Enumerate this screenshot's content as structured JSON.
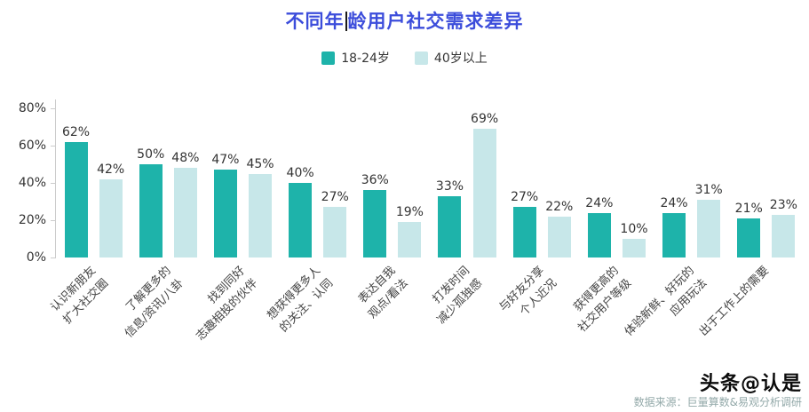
{
  "title": {
    "part1": "不同年",
    "part2": "龄用户社交需求差异"
  },
  "legend": [
    {
      "label": "18-24岁",
      "color": "#1eb3aa"
    },
    {
      "label": "40岁以上",
      "color": "#c7e7e9"
    }
  ],
  "chart_data": {
    "type": "bar",
    "title": "不同年龄用户社交需求差异",
    "categories": [
      "认识新朋友\n扩大社交圈",
      "了解更多的\n信息/资讯/八卦",
      "找到同好\n志趣相投的伙伴",
      "想获得更多人\n的关注、认同",
      "表达自我\n观点/看法",
      "打发时间\n减少孤独感",
      "与好友分享\n个人近况",
      "获得更高的\n社交用户等级",
      "体验新鲜、好玩的\n应用玩法",
      "出于工作上的需要"
    ],
    "series": [
      {
        "name": "18-24岁",
        "color": "#1eb3aa",
        "values": [
          62,
          50,
          47,
          40,
          36,
          33,
          27,
          24,
          24,
          21
        ]
      },
      {
        "name": "40岁以上",
        "color": "#c7e7e9",
        "values": [
          42,
          48,
          45,
          27,
          19,
          69,
          22,
          10,
          31,
          23
        ]
      }
    ],
    "ylim": [
      0,
      80
    ],
    "yticks": [
      "0%",
      "20%",
      "40%",
      "60%",
      "80%"
    ],
    "grid": false,
    "legend_position": "top",
    "value_label_suffix": "%"
  },
  "footer": {
    "source": "数据来源：巨量算数&易观分析调研",
    "watermark": "头条@认是"
  }
}
